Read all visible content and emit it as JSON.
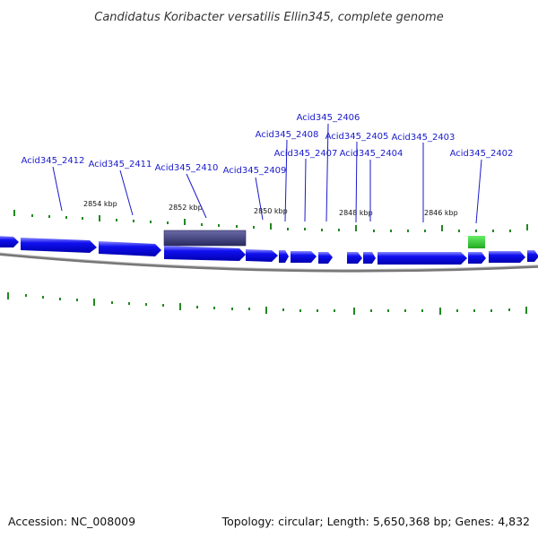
{
  "title": "Candidatus Koribacter versatilis Ellin345, complete genome",
  "footer": {
    "accession": "Accession: NC_008009",
    "stats": "Topology: circular; Length: 5,650,368 bp; Genes: 4,832"
  },
  "gene_labels": [
    "Acid345_2412",
    "Acid345_2411",
    "Acid345_2410",
    "Acid345_2409",
    "Acid345_2408",
    "Acid345_2407",
    "Acid345_2406",
    "Acid345_2405",
    "Acid345_2404",
    "Acid345_2403",
    "Acid345_2402"
  ],
  "kbp_labels": [
    "2854 kbp",
    "2852 kbp",
    "2850 kbp",
    "2848 kbp",
    "2846 kbp"
  ],
  "colors": {
    "gene": "#0a0ae6",
    "gene_highlight": "#c8c8ff",
    "selected_gene": "#3c3c78",
    "green_gene": "#33bb33",
    "tick": "#228822",
    "backbone": "#808080",
    "label": "#1a1acc"
  }
}
